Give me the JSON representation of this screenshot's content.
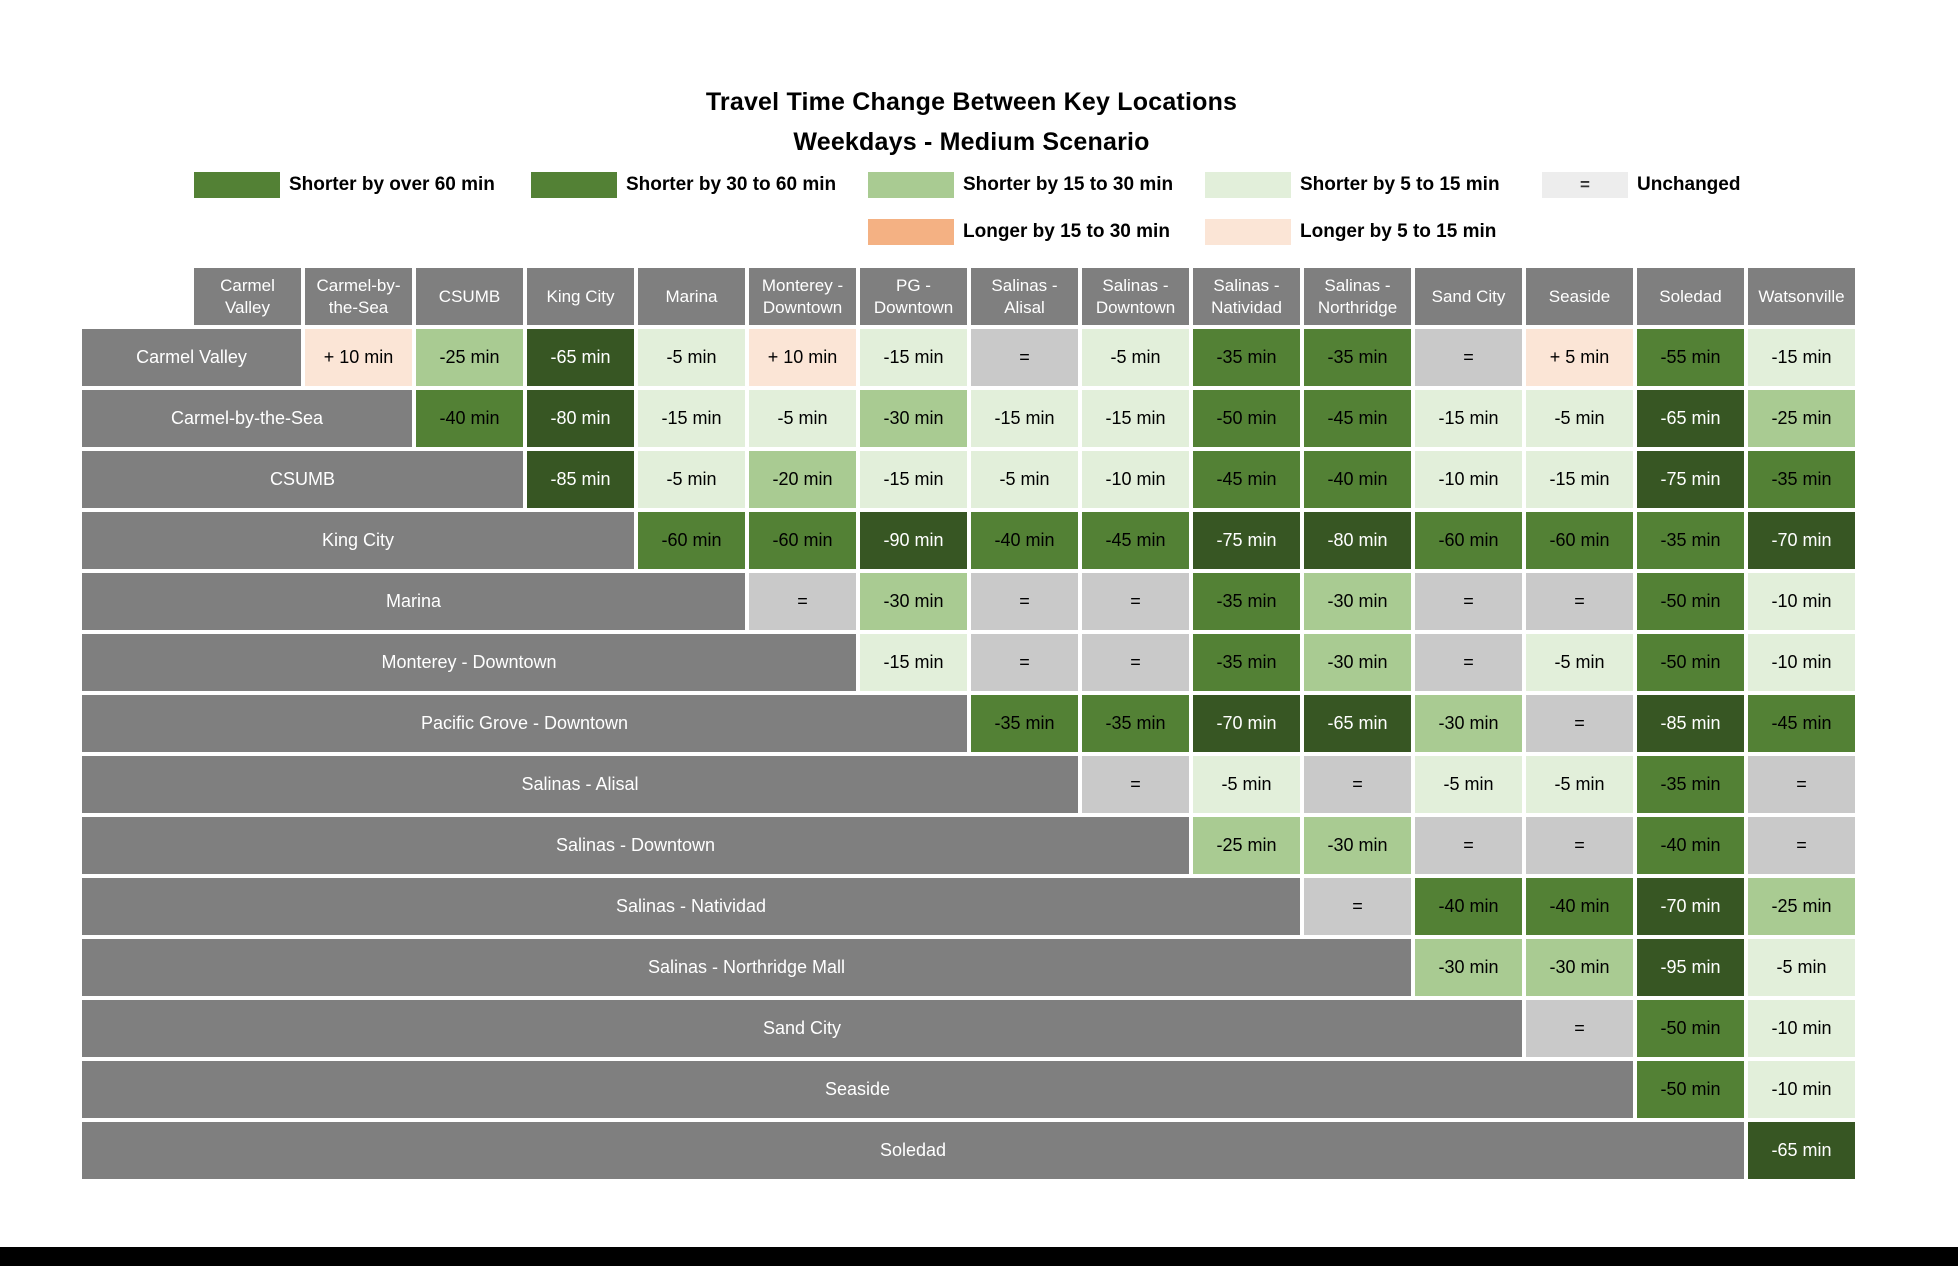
{
  "title": {
    "line1": "Travel Time Change Between Key Locations",
    "line2": "Weekdays - Medium Scenario"
  },
  "legend": {
    "row1": [
      {
        "name": "shorter-over-60",
        "label": "Shorter by over 60 min",
        "color": "#538135",
        "symbol": ""
      },
      {
        "name": "shorter-30-60",
        "label": "Shorter by 30 to 60 min",
        "color": "#538135",
        "symbol": ""
      },
      {
        "name": "shorter-15-30",
        "label": "Shorter by 15 to 30 min",
        "color": "#a9cb92",
        "symbol": ""
      },
      {
        "name": "shorter-5-15",
        "label": "Shorter by 5 to 15 min",
        "color": "#e2efda",
        "symbol": ""
      },
      {
        "name": "unchanged",
        "label": "Unchanged",
        "color": "#ededed",
        "symbol": "="
      }
    ],
    "row2": [
      {
        "name": "longer-15-30",
        "label": "Longer by 15 to 30 min",
        "color": "#f4b183",
        "symbol": ""
      },
      {
        "name": "longer-5-15",
        "label": "Longer by 5 to 15 min",
        "color": "#fbe5d6",
        "symbol": ""
      }
    ]
  },
  "palette": {
    "dark_green_over_60": "#375623",
    "medium_green_30_60": "#538135",
    "light_green_15_30": "#a9cb92",
    "very_light_green_5_15": "#e2efda",
    "unchanged_gray": "#c9c9c9",
    "longer_peach_5_15": "#fbe5d6",
    "longer_orange_15_30": "#f4b183",
    "header_gray": "#7f7f7f"
  },
  "chart_data": {
    "type": "heatmap",
    "title": "Travel Time Change Between Key Locations",
    "subtitle": "Weekdays - Medium Scenario",
    "category_codes": {
      "d": "Shorter by over 60 min",
      "m": "Shorter by 30 to 60 min",
      "l": "Shorter by 15 to 30 min",
      "xl": "Shorter by 5 to 15 min",
      "u": "Unchanged",
      "p": "Longer by 5 to 15 min",
      "o": "Longer by 15 to 30 min"
    },
    "columns": [
      "Carmel Valley",
      "Carmel-by-the-Sea",
      "CSUMB",
      "King City",
      "Marina",
      "Monterey - Downtown",
      "PG - Downtown",
      "Salinas - Alisal",
      "Salinas - Downtown",
      "Salinas - Natividad",
      "Salinas - Northridge",
      "Sand City",
      "Seaside",
      "Soledad",
      "Watsonville"
    ],
    "rows": [
      {
        "label": "Carmel Valley",
        "cells": [
          [
            "+ 10 min",
            "p"
          ],
          [
            "-25 min",
            "l"
          ],
          [
            "-65 min",
            "d"
          ],
          [
            "-5 min",
            "xl"
          ],
          [
            "+ 10 min",
            "p"
          ],
          [
            "-15 min",
            "xl"
          ],
          [
            "=",
            "u"
          ],
          [
            "-5 min",
            "xl"
          ],
          [
            "-35 min",
            "m"
          ],
          [
            "-35 min",
            "m"
          ],
          [
            "=",
            "u"
          ],
          [
            "+ 5 min",
            "p"
          ],
          [
            "-55 min",
            "m"
          ],
          [
            "-15 min",
            "xl"
          ]
        ]
      },
      {
        "label": "Carmel-by-the-Sea",
        "cells": [
          [
            "-40 min",
            "m"
          ],
          [
            "-80 min",
            "d"
          ],
          [
            "-15 min",
            "xl"
          ],
          [
            "-5 min",
            "xl"
          ],
          [
            "-30 min",
            "l"
          ],
          [
            "-15 min",
            "xl"
          ],
          [
            "-15 min",
            "xl"
          ],
          [
            "-50 min",
            "m"
          ],
          [
            "-45 min",
            "m"
          ],
          [
            "-15 min",
            "xl"
          ],
          [
            "-5 min",
            "xl"
          ],
          [
            "-65 min",
            "d"
          ],
          [
            "-25 min",
            "l"
          ]
        ]
      },
      {
        "label": "CSUMB",
        "cells": [
          [
            "-85 min",
            "d"
          ],
          [
            "-5 min",
            "xl"
          ],
          [
            "-20 min",
            "l"
          ],
          [
            "-15 min",
            "xl"
          ],
          [
            "-5 min",
            "xl"
          ],
          [
            "-10 min",
            "xl"
          ],
          [
            "-45 min",
            "m"
          ],
          [
            "-40 min",
            "m"
          ],
          [
            "-10 min",
            "xl"
          ],
          [
            "-15 min",
            "xl"
          ],
          [
            "-75 min",
            "d"
          ],
          [
            "-35 min",
            "m"
          ]
        ]
      },
      {
        "label": "King City",
        "cells": [
          [
            "-60 min",
            "m"
          ],
          [
            "-60 min",
            "m"
          ],
          [
            "-90 min",
            "d"
          ],
          [
            "-40 min",
            "m"
          ],
          [
            "-45 min",
            "m"
          ],
          [
            "-75 min",
            "d"
          ],
          [
            "-80 min",
            "d"
          ],
          [
            "-60 min",
            "m"
          ],
          [
            "-60 min",
            "m"
          ],
          [
            "-35 min",
            "m"
          ],
          [
            "-70 min",
            "d"
          ]
        ]
      },
      {
        "label": "Marina",
        "cells": [
          [
            "=",
            "u"
          ],
          [
            "-30 min",
            "l"
          ],
          [
            "=",
            "u"
          ],
          [
            "=",
            "u"
          ],
          [
            "-35 min",
            "m"
          ],
          [
            "-30 min",
            "l"
          ],
          [
            "=",
            "u"
          ],
          [
            "=",
            "u"
          ],
          [
            "-50 min",
            "m"
          ],
          [
            "-10 min",
            "xl"
          ]
        ]
      },
      {
        "label": "Monterey  - Downtown",
        "cells": [
          [
            "-15 min",
            "xl"
          ],
          [
            "=",
            "u"
          ],
          [
            "=",
            "u"
          ],
          [
            "-35 min",
            "m"
          ],
          [
            "-30 min",
            "l"
          ],
          [
            "=",
            "u"
          ],
          [
            "-5 min",
            "xl"
          ],
          [
            "-50 min",
            "m"
          ],
          [
            "-10 min",
            "xl"
          ]
        ]
      },
      {
        "label": "Pacific Grove - Downtown",
        "cells": [
          [
            "-35 min",
            "m"
          ],
          [
            "-35 min",
            "m"
          ],
          [
            "-70 min",
            "d"
          ],
          [
            "-65 min",
            "d"
          ],
          [
            "-30 min",
            "l"
          ],
          [
            "=",
            "u"
          ],
          [
            "-85 min",
            "d"
          ],
          [
            "-45 min",
            "m"
          ]
        ]
      },
      {
        "label": "Salinas - Alisal",
        "cells": [
          [
            "=",
            "u"
          ],
          [
            "-5 min",
            "xl"
          ],
          [
            "=",
            "u"
          ],
          [
            "-5 min",
            "xl"
          ],
          [
            "-5 min",
            "xl"
          ],
          [
            "-35 min",
            "m"
          ],
          [
            "=",
            "u"
          ]
        ]
      },
      {
        "label": "Salinas - Downtown",
        "cells": [
          [
            "-25 min",
            "l"
          ],
          [
            "-30 min",
            "l"
          ],
          [
            "=",
            "u"
          ],
          [
            "=",
            "u"
          ],
          [
            "-40 min",
            "m"
          ],
          [
            "=",
            "u"
          ]
        ]
      },
      {
        "label": "Salinas - Natividad",
        "cells": [
          [
            "=",
            "u"
          ],
          [
            "-40 min",
            "m"
          ],
          [
            "-40 min",
            "m"
          ],
          [
            "-70 min",
            "d"
          ],
          [
            "-25 min",
            "l"
          ]
        ]
      },
      {
        "label": "Salinas - Northridge Mall",
        "cells": [
          [
            "-30 min",
            "l"
          ],
          [
            "-30 min",
            "l"
          ],
          [
            "-95 min",
            "d"
          ],
          [
            "-5 min",
            "xl"
          ]
        ]
      },
      {
        "label": "Sand City",
        "cells": [
          [
            "=",
            "u"
          ],
          [
            "-50 min",
            "m"
          ],
          [
            "-10 min",
            "xl"
          ]
        ]
      },
      {
        "label": "Seaside",
        "cells": [
          [
            "-50 min",
            "m"
          ],
          [
            "-10 min",
            "xl"
          ]
        ]
      },
      {
        "label": "Soledad",
        "cells": [
          [
            "-65 min",
            "d"
          ]
        ]
      }
    ]
  }
}
